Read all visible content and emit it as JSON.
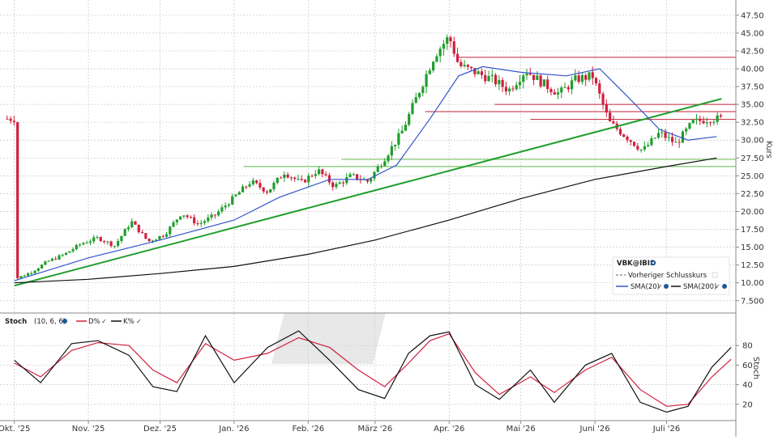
{
  "chart_data": [
    {
      "type": "candlestick",
      "panel": "price",
      "symbol_legend": "VBK@IBIS",
      "ylabel": "Kurs",
      "ylim": [
        6,
        48.5
      ],
      "yticks": [
        "7.500",
        "10.00",
        "12.50",
        "15.00",
        "17.50",
        "20.00",
        "22.50",
        "25.00",
        "27.50",
        "30.00",
        "32.50",
        "35.00",
        "37.50",
        "40.00",
        "42.50",
        "45.00",
        "47.50"
      ],
      "xlabels": [
        "Okt. '25",
        "Nov. '25",
        "Dez. '25",
        "Jan. '26",
        "Feb. '26",
        "März '26",
        "Apr. '26",
        "Mai '26",
        "Juni '26",
        "Juli '26"
      ],
      "grid": true,
      "legend_position": "bottom-right",
      "legend": {
        "prev_close_label": "Vorheriger Schlusskurs",
        "sma20_label": "SMA(20)",
        "sma200_label": "SMA(200)"
      },
      "close_points": [
        {
          "x": "2025-10-01",
          "y": 10.5
        },
        {
          "x": "2025-10-08",
          "y": 11.5
        },
        {
          "x": "2025-10-15",
          "y": 13.0
        },
        {
          "x": "2025-10-22",
          "y": 14.0
        },
        {
          "x": "2025-10-29",
          "y": 15.5
        },
        {
          "x": "2025-11-05",
          "y": 16.3
        },
        {
          "x": "2025-11-12",
          "y": 15.2
        },
        {
          "x": "2025-11-19",
          "y": 18.6
        },
        {
          "x": "2025-11-26",
          "y": 15.8
        },
        {
          "x": "2025-12-03",
          "y": 16.8
        },
        {
          "x": "2025-12-10",
          "y": 19.8
        },
        {
          "x": "2025-12-17",
          "y": 18.2
        },
        {
          "x": "2025-12-24",
          "y": 19.5
        },
        {
          "x": "2026-01-01",
          "y": 22.0
        },
        {
          "x": "2026-01-08",
          "y": 24.2
        },
        {
          "x": "2026-01-15",
          "y": 22.8
        },
        {
          "x": "2026-01-22",
          "y": 25.5
        },
        {
          "x": "2026-01-29",
          "y": 24.0
        },
        {
          "x": "2026-02-05",
          "y": 25.8
        },
        {
          "x": "2026-02-12",
          "y": 23.5
        },
        {
          "x": "2026-02-19",
          "y": 25.0
        },
        {
          "x": "2026-02-26",
          "y": 24.2
        },
        {
          "x": "2026-03-05",
          "y": 27.5
        },
        {
          "x": "2026-03-12",
          "y": 31.0
        },
        {
          "x": "2026-03-19",
          "y": 36.5
        },
        {
          "x": "2026-03-26",
          "y": 42.0
        },
        {
          "x": "2026-04-01",
          "y": 44.5
        },
        {
          "x": "2026-04-05",
          "y": 40.5
        },
        {
          "x": "2026-04-12",
          "y": 39.5
        },
        {
          "x": "2026-04-19",
          "y": 38.5
        },
        {
          "x": "2026-04-26",
          "y": 37.0
        },
        {
          "x": "2026-05-03",
          "y": 39.8
        },
        {
          "x": "2026-05-10",
          "y": 38.0
        },
        {
          "x": "2026-05-17",
          "y": 36.5
        },
        {
          "x": "2026-05-24",
          "y": 38.5
        },
        {
          "x": "2026-05-31",
          "y": 39.0
        },
        {
          "x": "2026-06-07",
          "y": 32.5
        },
        {
          "x": "2026-06-14",
          "y": 30.5
        },
        {
          "x": "2026-06-21",
          "y": 28.5
        },
        {
          "x": "2026-06-28",
          "y": 31.0
        },
        {
          "x": "2026-07-05",
          "y": 29.5
        },
        {
          "x": "2026-07-12",
          "y": 32.5
        },
        {
          "x": "2026-07-19",
          "y": 33.0
        }
      ],
      "sma20": [
        {
          "x": "2025-10-01",
          "y": 10.3
        },
        {
          "x": "2025-11-01",
          "y": 13.5
        },
        {
          "x": "2025-12-01",
          "y": 16.0
        },
        {
          "x": "2026-01-01",
          "y": 18.8
        },
        {
          "x": "2026-01-20",
          "y": 22.0
        },
        {
          "x": "2026-02-10",
          "y": 24.5
        },
        {
          "x": "2026-02-26",
          "y": 24.5
        },
        {
          "x": "2026-03-10",
          "y": 26.5
        },
        {
          "x": "2026-03-24",
          "y": 33.0
        },
        {
          "x": "2026-04-05",
          "y": 39.0
        },
        {
          "x": "2026-04-15",
          "y": 40.3
        },
        {
          "x": "2026-05-01",
          "y": 39.5
        },
        {
          "x": "2026-05-20",
          "y": 39.0
        },
        {
          "x": "2026-06-03",
          "y": 40.0
        },
        {
          "x": "2026-06-15",
          "y": 36.0
        },
        {
          "x": "2026-06-28",
          "y": 31.5
        },
        {
          "x": "2026-07-10",
          "y": 30.0
        },
        {
          "x": "2026-07-22",
          "y": 30.5
        }
      ],
      "sma200": [
        {
          "x": "2025-10-01",
          "y": 10.0
        },
        {
          "x": "2025-11-01",
          "y": 10.5
        },
        {
          "x": "2025-12-01",
          "y": 11.3
        },
        {
          "x": "2026-01-01",
          "y": 12.3
        },
        {
          "x": "2026-02-01",
          "y": 14.0
        },
        {
          "x": "2026-03-01",
          "y": 16.0
        },
        {
          "x": "2026-04-01",
          "y": 18.8
        },
        {
          "x": "2026-05-01",
          "y": 21.8
        },
        {
          "x": "2026-06-01",
          "y": 24.5
        },
        {
          "x": "2026-07-01",
          "y": 26.3
        },
        {
          "x": "2026-07-22",
          "y": 27.5
        }
      ],
      "trendline": {
        "from": {
          "x": "2025-10-01",
          "y": 9.6
        },
        "to": {
          "x": "2026-07-24",
          "y": 35.8
        }
      },
      "resistance_levels_red": [
        41.6,
        35.0,
        34.0,
        32.9
      ],
      "support_levels_green": [
        27.3,
        26.3
      ]
    },
    {
      "type": "line",
      "panel": "stochastic",
      "indicator_label": "Stoch",
      "params_label": "(10, 6, 6)",
      "ylabel": "Stoch",
      "ylim": [
        5,
        100
      ],
      "yticks": [
        "20",
        "40",
        "60",
        "80"
      ],
      "legend_position": "top-left",
      "series": [
        {
          "name": "D%",
          "color": "#d0203f",
          "values": [
            {
              "x": "2025-10-01",
              "y": 62
            },
            {
              "x": "2025-10-12",
              "y": 48
            },
            {
              "x": "2025-10-25",
              "y": 75
            },
            {
              "x": "2025-11-05",
              "y": 83
            },
            {
              "x": "2025-11-18",
              "y": 80
            },
            {
              "x": "2025-11-28",
              "y": 55
            },
            {
              "x": "2025-12-08",
              "y": 42
            },
            {
              "x": "2025-12-20",
              "y": 82
            },
            {
              "x": "2026-01-01",
              "y": 65
            },
            {
              "x": "2026-01-15",
              "y": 72
            },
            {
              "x": "2026-01-28",
              "y": 88
            },
            {
              "x": "2026-02-10",
              "y": 78
            },
            {
              "x": "2026-02-22",
              "y": 55
            },
            {
              "x": "2026-03-05",
              "y": 38
            },
            {
              "x": "2026-03-15",
              "y": 62
            },
            {
              "x": "2026-03-24",
              "y": 85
            },
            {
              "x": "2026-04-01",
              "y": 92
            },
            {
              "x": "2026-04-12",
              "y": 52
            },
            {
              "x": "2026-04-22",
              "y": 30
            },
            {
              "x": "2026-05-05",
              "y": 48
            },
            {
              "x": "2026-05-15",
              "y": 32
            },
            {
              "x": "2026-05-28",
              "y": 55
            },
            {
              "x": "2026-06-08",
              "y": 68
            },
            {
              "x": "2026-06-20",
              "y": 35
            },
            {
              "x": "2026-07-01",
              "y": 18
            },
            {
              "x": "2026-07-10",
              "y": 20
            },
            {
              "x": "2026-07-20",
              "y": 48
            },
            {
              "x": "2026-07-28",
              "y": 66
            }
          ]
        },
        {
          "name": "K%",
          "color": "#111111",
          "values": [
            {
              "x": "2025-10-01",
              "y": 65
            },
            {
              "x": "2025-10-12",
              "y": 42
            },
            {
              "x": "2025-10-25",
              "y": 82
            },
            {
              "x": "2025-11-05",
              "y": 85
            },
            {
              "x": "2025-11-18",
              "y": 70
            },
            {
              "x": "2025-11-28",
              "y": 38
            },
            {
              "x": "2025-12-08",
              "y": 33
            },
            {
              "x": "2025-12-20",
              "y": 90
            },
            {
              "x": "2026-01-01",
              "y": 42
            },
            {
              "x": "2026-01-15",
              "y": 78
            },
            {
              "x": "2026-01-28",
              "y": 95
            },
            {
              "x": "2026-02-10",
              "y": 65
            },
            {
              "x": "2026-02-22",
              "y": 35
            },
            {
              "x": "2026-03-05",
              "y": 26
            },
            {
              "x": "2026-03-15",
              "y": 72
            },
            {
              "x": "2026-03-24",
              "y": 90
            },
            {
              "x": "2026-04-01",
              "y": 94
            },
            {
              "x": "2026-04-12",
              "y": 40
            },
            {
              "x": "2026-04-22",
              "y": 25
            },
            {
              "x": "2026-05-05",
              "y": 55
            },
            {
              "x": "2026-05-15",
              "y": 22
            },
            {
              "x": "2026-05-28",
              "y": 60
            },
            {
              "x": "2026-06-08",
              "y": 72
            },
            {
              "x": "2026-06-20",
              "y": 22
            },
            {
              "x": "2026-07-01",
              "y": 12
            },
            {
              "x": "2026-07-10",
              "y": 18
            },
            {
              "x": "2026-07-20",
              "y": 58
            },
            {
              "x": "2026-07-28",
              "y": 78
            }
          ]
        }
      ]
    }
  ],
  "colors": {
    "bull_candle": "#1f9e2c",
    "bear_candle": "#d0203f",
    "sma20": "#3355cc",
    "sma200": "#111111",
    "trendline": "#1f9e2c",
    "resistance": "#c0203a",
    "support": "#7cc46e",
    "grid": "#c8c8c8"
  },
  "icons": [
    "settings-gear-icon",
    "check-icon",
    "chart-dropdown-icon"
  ]
}
